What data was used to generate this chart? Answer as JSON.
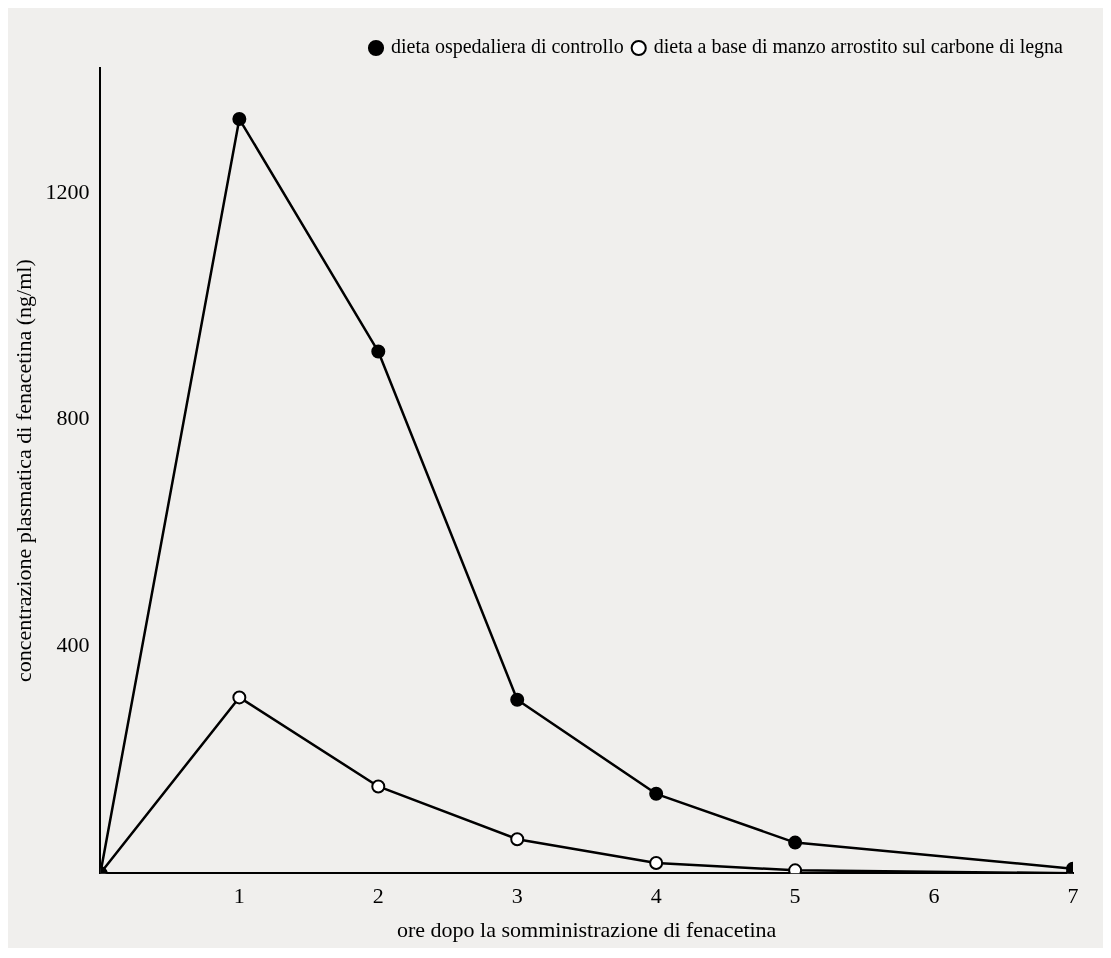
{
  "chart_data": {
    "type": "line",
    "xlabel": "ore dopo la somministrazione di fenacetina",
    "ylabel": "concentrazione plasmatica di fenacetina (ng/ml)",
    "series": [
      {
        "name": "dieta ospedaliera di controllo",
        "color": "#000000",
        "x": [
          0,
          1,
          2,
          3,
          4,
          5,
          7
        ],
        "values": [
          0,
          1330,
          920,
          306,
          140,
          54,
          8
        ]
      },
      {
        "name": "dieta a base di manzo arrostito sul carbone di legna",
        "color": "#000000",
        "x": [
          0,
          1,
          2,
          3,
          4,
          5,
          7
        ],
        "values": [
          0,
          310,
          153,
          60,
          18,
          5,
          0
        ]
      }
    ],
    "xlim": [
      0,
      7
    ],
    "xticks": [
      1,
      2,
      3,
      4,
      5,
      6,
      7
    ],
    "ylim": [
      0,
      1420
    ],
    "yticks": [
      400,
      800,
      1200
    ],
    "grid": false,
    "legend": "top right",
    "marker": "circle",
    "line_style": "solid"
  }
}
